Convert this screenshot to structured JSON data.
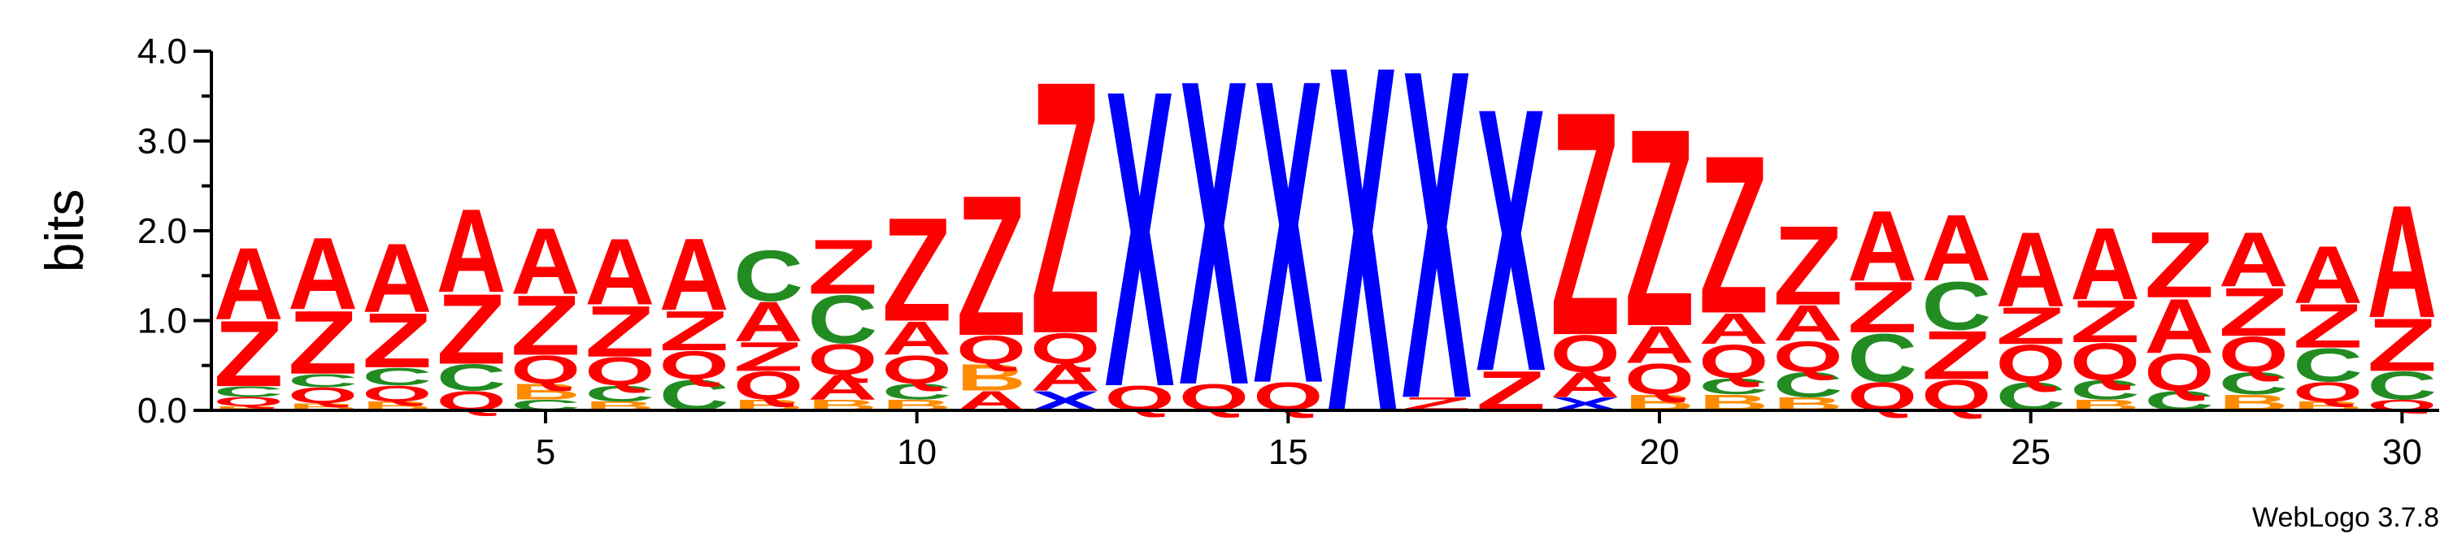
{
  "chart_data": {
    "type": "sequence-logo",
    "title": "",
    "ylabel": "bits",
    "xlabel": "",
    "ylim": [
      0,
      4.0
    ],
    "yticks": [
      "0.0",
      "1.0",
      "2.0",
      "3.0",
      "4.0"
    ],
    "yticks_minor": [
      0.5,
      1.5,
      2.5,
      3.5
    ],
    "xticks": [
      "5",
      "10",
      "15",
      "20",
      "25",
      "30"
    ],
    "xticks_values": [
      5,
      10,
      15,
      20,
      25,
      30
    ],
    "positions": 30,
    "footer": "WebLogo 3.7.8",
    "colors": {
      "A": "#ff0000",
      "Z": "#ff0000",
      "Q": "#ff0000",
      "C": "#228b22",
      "B": "#ff8c00",
      "X": "#0000ff"
    },
    "stacks": [
      {
        "position": 1,
        "letters": [
          [
            "B",
            0.05
          ],
          [
            "Q",
            0.1
          ],
          [
            "C",
            0.12
          ],
          [
            "Z",
            0.75
          ],
          [
            "A",
            0.82
          ]
        ]
      },
      {
        "position": 2,
        "letters": [
          [
            "B",
            0.08
          ],
          [
            "Q",
            0.18
          ],
          [
            "C",
            0.15
          ],
          [
            "Z",
            0.72
          ],
          [
            "A",
            0.82
          ]
        ]
      },
      {
        "position": 3,
        "letters": [
          [
            "B",
            0.1
          ],
          [
            "Q",
            0.18
          ],
          [
            "C",
            0.2
          ],
          [
            "Z",
            0.62
          ],
          [
            "A",
            0.78
          ]
        ]
      },
      {
        "position": 4,
        "letters": [
          [
            "Q",
            0.22
          ],
          [
            "C",
            0.3
          ],
          [
            "Z",
            0.8
          ],
          [
            "A",
            0.95
          ]
        ]
      },
      {
        "position": 5,
        "letters": [
          [
            "C",
            0.12
          ],
          [
            "B",
            0.18
          ],
          [
            "Q",
            0.32
          ],
          [
            "Z",
            0.68
          ],
          [
            "A",
            0.75
          ]
        ]
      },
      {
        "position": 6,
        "letters": [
          [
            "B",
            0.1
          ],
          [
            "C",
            0.18
          ],
          [
            "Q",
            0.32
          ],
          [
            "Z",
            0.58
          ],
          [
            "A",
            0.75
          ]
        ]
      },
      {
        "position": 7,
        "letters": [
          [
            "C",
            0.35
          ],
          [
            "Q",
            0.32
          ],
          [
            "Z",
            0.45
          ],
          [
            "A",
            0.82
          ]
        ]
      },
      {
        "position": 8,
        "letters": [
          [
            "B",
            0.12
          ],
          [
            "Q",
            0.32
          ],
          [
            "Z",
            0.33
          ],
          [
            "A",
            0.45
          ],
          [
            "C",
            0.58
          ]
        ]
      },
      {
        "position": 9,
        "letters": [
          [
            "B",
            0.12
          ],
          [
            "A",
            0.28
          ],
          [
            "Q",
            0.35
          ],
          [
            "C",
            0.55
          ],
          [
            "Z",
            0.62
          ]
        ]
      },
      {
        "position": 10,
        "letters": [
          [
            "B",
            0.12
          ],
          [
            "C",
            0.18
          ],
          [
            "Q",
            0.32
          ],
          [
            "A",
            0.38
          ],
          [
            "Z",
            1.18
          ]
        ]
      },
      {
        "position": 11,
        "letters": [
          [
            "A",
            0.22
          ],
          [
            "B",
            0.3
          ],
          [
            "Q",
            0.32
          ],
          [
            "Z",
            1.6
          ]
        ]
      },
      {
        "position": 12,
        "letters": [
          [
            "X",
            0.22
          ],
          [
            "A",
            0.3
          ],
          [
            "Q",
            0.35
          ],
          [
            "Z",
            2.88
          ]
        ]
      },
      {
        "position": 13,
        "letters": [
          [
            "Q",
            0.28
          ],
          [
            "X",
            3.38
          ]
        ]
      },
      {
        "position": 14,
        "letters": [
          [
            "Q",
            0.3
          ],
          [
            "X",
            3.48
          ]
        ]
      },
      {
        "position": 15,
        "letters": [
          [
            "Q",
            0.32
          ],
          [
            "X",
            3.46
          ]
        ]
      },
      {
        "position": 16,
        "letters": [
          [
            "X",
            3.95
          ]
        ]
      },
      {
        "position": 17,
        "letters": [
          [
            "Z",
            0.15
          ],
          [
            "X",
            3.75
          ]
        ]
      },
      {
        "position": 18,
        "letters": [
          [
            "Z",
            0.45
          ],
          [
            "X",
            3.0
          ]
        ]
      },
      {
        "position": 19,
        "letters": [
          [
            "X",
            0.15
          ],
          [
            "A",
            0.28
          ],
          [
            "Q",
            0.42
          ],
          [
            "Z",
            2.55
          ]
        ]
      },
      {
        "position": 20,
        "letters": [
          [
            "B",
            0.18
          ],
          [
            "Q",
            0.35
          ],
          [
            "A",
            0.42
          ],
          [
            "Z",
            2.25
          ]
        ]
      },
      {
        "position": 21,
        "letters": [
          [
            "B",
            0.18
          ],
          [
            "C",
            0.18
          ],
          [
            "Q",
            0.38
          ],
          [
            "A",
            0.35
          ],
          [
            "Z",
            1.8
          ]
        ]
      },
      {
        "position": 22,
        "letters": [
          [
            "B",
            0.15
          ],
          [
            "C",
            0.28
          ],
          [
            "Q",
            0.35
          ],
          [
            "A",
            0.4
          ],
          [
            "Z",
            0.9
          ]
        ]
      },
      {
        "position": 23,
        "letters": [
          [
            "Q",
            0.32
          ],
          [
            "C",
            0.55
          ],
          [
            "Z",
            0.58
          ],
          [
            "A",
            0.8
          ]
        ]
      },
      {
        "position": 24,
        "letters": [
          [
            "Q",
            0.35
          ],
          [
            "Z",
            0.55
          ],
          [
            "C",
            0.55
          ],
          [
            "A",
            0.75
          ]
        ]
      },
      {
        "position": 25,
        "letters": [
          [
            "C",
            0.32
          ],
          [
            "Q",
            0.42
          ],
          [
            "Z",
            0.42
          ],
          [
            "A",
            0.85
          ]
        ]
      },
      {
        "position": 26,
        "letters": [
          [
            "B",
            0.12
          ],
          [
            "C",
            0.22
          ],
          [
            "Q",
            0.42
          ],
          [
            "Z",
            0.48
          ],
          [
            "A",
            0.82
          ]
        ]
      },
      {
        "position": 27,
        "letters": [
          [
            "C",
            0.22
          ],
          [
            "Q",
            0.42
          ],
          [
            "A",
            0.62
          ],
          [
            "Z",
            0.75
          ]
        ]
      },
      {
        "position": 28,
        "letters": [
          [
            "B",
            0.18
          ],
          [
            "C",
            0.25
          ],
          [
            "Q",
            0.4
          ],
          [
            "Z",
            0.55
          ],
          [
            "A",
            0.62
          ]
        ]
      },
      {
        "position": 29,
        "letters": [
          [
            "B",
            0.1
          ],
          [
            "Q",
            0.22
          ],
          [
            "C",
            0.38
          ],
          [
            "Z",
            0.5
          ],
          [
            "A",
            0.65
          ]
        ]
      },
      {
        "position": 30,
        "letters": [
          [
            "Q",
            0.12
          ],
          [
            "C",
            0.32
          ],
          [
            "Z",
            0.6
          ],
          [
            "A",
            1.28
          ]
        ]
      }
    ]
  }
}
